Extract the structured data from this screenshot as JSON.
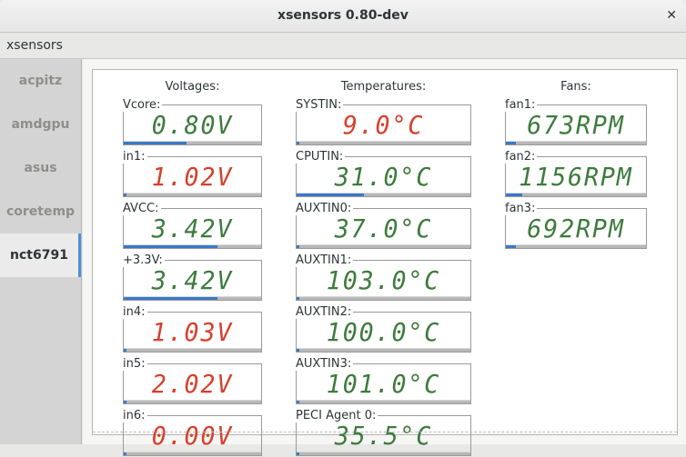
{
  "window": {
    "title": "xsensors 0.80-dev",
    "close_icon": "close-icon"
  },
  "menubar": {
    "app_label": "xsensors"
  },
  "sidebar": {
    "items": [
      {
        "label": "acpitz"
      },
      {
        "label": "amdgpu"
      },
      {
        "label": "asus"
      },
      {
        "label": "coretemp"
      },
      {
        "label": "nct6791"
      }
    ],
    "selected": "nct6791"
  },
  "colors": {
    "normal": "#3d7b3d",
    "alarm": "#d6402c",
    "bar": "#3a78c9"
  },
  "columns": [
    {
      "title": "Voltages:",
      "sensors": [
        {
          "label": "Vcore:",
          "value": "0.80V",
          "status": "normal",
          "level": 0.46
        },
        {
          "label": "in1:",
          "value": "1.02V",
          "status": "alarm",
          "level": 0.01
        },
        {
          "label": "AVCC:",
          "value": "3.42V",
          "status": "normal",
          "level": 0.68
        },
        {
          "label": "+3.3V:",
          "value": "3.42V",
          "status": "normal",
          "level": 0.68
        },
        {
          "label": "in4:",
          "value": "1.03V",
          "status": "alarm",
          "level": 0.01
        },
        {
          "label": "in5:",
          "value": "2.02V",
          "status": "alarm",
          "level": 0.01
        },
        {
          "label": "in6:",
          "value": "0.00V",
          "status": "alarm",
          "level": 0.01
        }
      ]
    },
    {
      "title": "Temperatures:",
      "sensors": [
        {
          "label": "SYSTIN:",
          "value": "9.0°C",
          "status": "alarm",
          "level": 0.01
        },
        {
          "label": "CPUTIN:",
          "value": "31.0°C",
          "status": "normal",
          "level": 0.39
        },
        {
          "label": "AUXTIN0:",
          "value": "37.0°C",
          "status": "normal",
          "level": 0.01
        },
        {
          "label": "AUXTIN1:",
          "value": "103.0°C",
          "status": "normal",
          "level": 0.01
        },
        {
          "label": "AUXTIN2:",
          "value": "100.0°C",
          "status": "normal",
          "level": 0.01
        },
        {
          "label": "AUXTIN3:",
          "value": "101.0°C",
          "status": "normal",
          "level": 0.01
        },
        {
          "label": "PECI Agent 0:",
          "value": "35.5°C",
          "status": "normal",
          "level": 0.01
        }
      ]
    },
    {
      "title": "Fans:",
      "sensors": [
        {
          "label": "fan1:",
          "value": "673RPM",
          "status": "normal",
          "level": 0.07
        },
        {
          "label": "fan2:",
          "value": "1156RPM",
          "status": "normal",
          "level": 0.12
        },
        {
          "label": "fan3:",
          "value": "692RPM",
          "status": "normal",
          "level": 0.07
        }
      ]
    }
  ]
}
